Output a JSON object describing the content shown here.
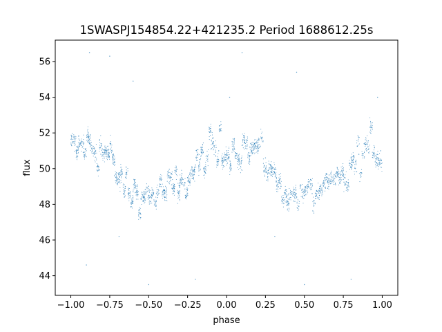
{
  "chart_data": {
    "type": "scatter",
    "title": "1SWASPJ154854.22+421235.2 Period 1688612.25s",
    "xlabel": "phase",
    "ylabel": "flux",
    "xlim": [
      -1.1,
      1.1
    ],
    "ylim": [
      42.9,
      57.2
    ],
    "xticks": [
      -1.0,
      -0.75,
      -0.5,
      -0.25,
      0.0,
      0.25,
      0.5,
      0.75,
      1.0
    ],
    "xtick_labels": [
      "−1.00",
      "−0.75",
      "−0.50",
      "−0.25",
      "0.00",
      "0.25",
      "0.50",
      "0.75",
      "1.00"
    ],
    "yticks": [
      44,
      46,
      48,
      50,
      52,
      54,
      56
    ],
    "ytick_labels": [
      "44",
      "46",
      "48",
      "50",
      "52",
      "54",
      "56"
    ],
    "grid": false,
    "legend": "none",
    "point_color": "#1f77b4",
    "series": [
      {
        "profile_phase": [
          0.0,
          0.1,
          0.2,
          0.25,
          0.3,
          0.4,
          0.5,
          0.6,
          0.7,
          0.75,
          0.8,
          0.9,
          1.0
        ],
        "profile_flux": [
          51.0,
          51.3,
          51.0,
          50.6,
          49.5,
          48.6,
          48.5,
          48.7,
          49.0,
          49.4,
          50.0,
          51.0,
          51.0
        ],
        "sample_points": [
          [
            -0.98,
            51.8
          ],
          [
            -0.95,
            51.2
          ],
          [
            -0.92,
            50.9
          ],
          [
            -0.88,
            51.4
          ],
          [
            -0.84,
            51.0
          ],
          [
            -0.8,
            50.7
          ],
          [
            -0.76,
            50.9
          ],
          [
            -0.72,
            49.6
          ],
          [
            -0.69,
            46.2
          ],
          [
            -0.65,
            49.0
          ],
          [
            -0.6,
            48.7
          ],
          [
            -0.55,
            48.3
          ],
          [
            -0.5,
            48.5
          ],
          [
            -0.45,
            48.6
          ],
          [
            -0.4,
            48.8
          ],
          [
            -0.35,
            48.9
          ],
          [
            -0.3,
            49.2
          ],
          [
            -0.25,
            49.5
          ],
          [
            -0.2,
            50.2
          ],
          [
            -0.15,
            50.9
          ],
          [
            -0.1,
            51.1
          ],
          [
            -0.05,
            51.0
          ],
          [
            0.0,
            51.0
          ],
          [
            0.02,
            54.0
          ],
          [
            0.05,
            51.1
          ],
          [
            0.1,
            51.3
          ],
          [
            0.15,
            51.2
          ],
          [
            0.2,
            51.0
          ],
          [
            0.25,
            50.6
          ],
          [
            0.31,
            46.2
          ],
          [
            0.35,
            49.0
          ],
          [
            0.4,
            48.6
          ],
          [
            0.45,
            48.4
          ],
          [
            0.5,
            48.5
          ],
          [
            0.55,
            48.6
          ],
          [
            0.6,
            48.7
          ],
          [
            0.65,
            48.9
          ],
          [
            0.7,
            49.1
          ],
          [
            0.75,
            49.4
          ],
          [
            0.8,
            50.2
          ],
          [
            0.85,
            50.8
          ],
          [
            0.9,
            51.0
          ],
          [
            0.95,
            51.2
          ],
          [
            0.97,
            54.0
          ],
          [
            0.99,
            51.0
          ]
        ],
        "outliers": [
          [
            -0.88,
            56.5
          ],
          [
            -0.75,
            56.3
          ],
          [
            0.1,
            56.5
          ],
          [
            -0.9,
            44.6
          ],
          [
            -0.2,
            43.8
          ],
          [
            0.8,
            43.8
          ],
          [
            0.5,
            43.5
          ],
          [
            -0.5,
            43.5
          ],
          [
            0.45,
            55.4
          ],
          [
            -0.6,
            54.9
          ]
        ]
      }
    ]
  }
}
